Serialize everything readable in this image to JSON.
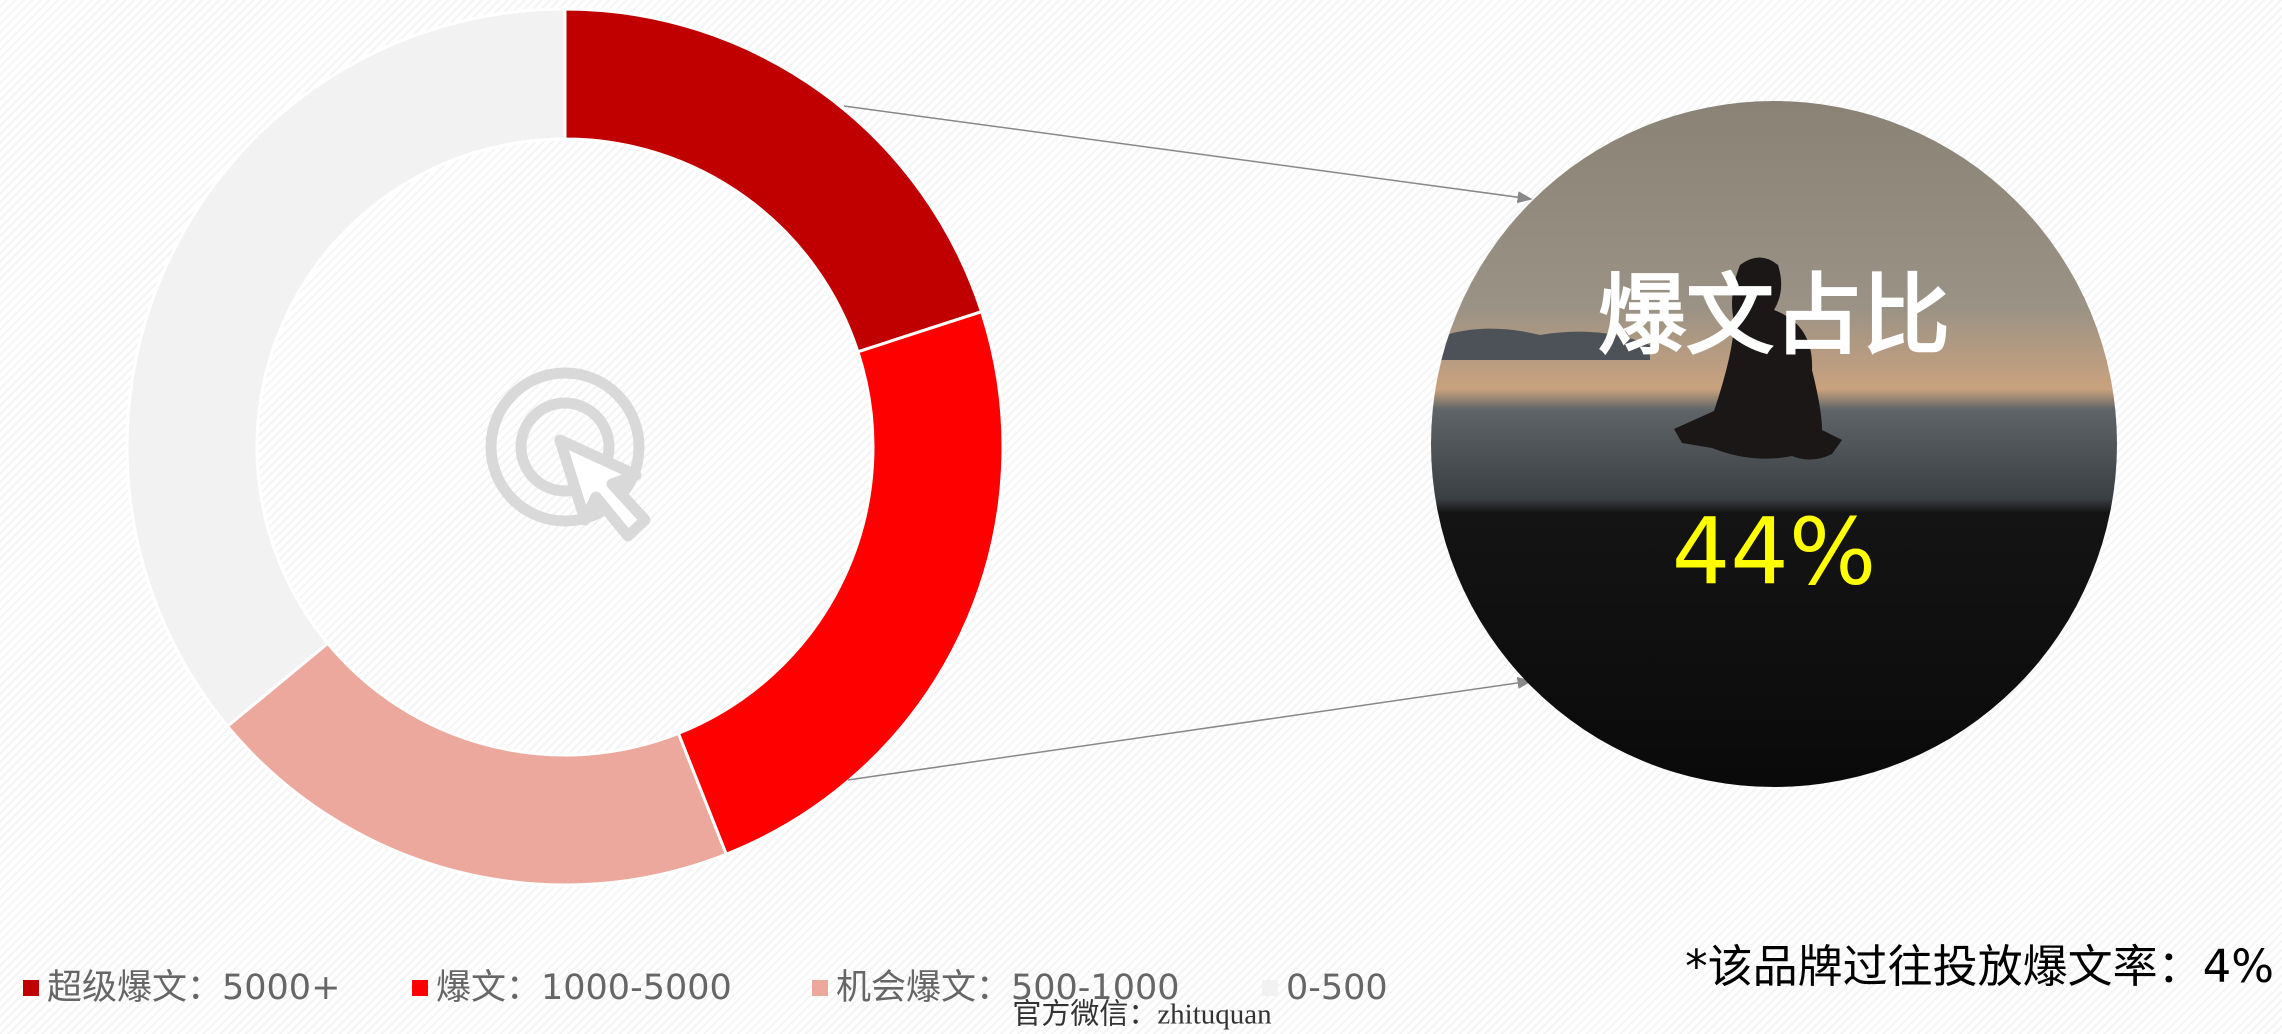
{
  "chart_data": {
    "type": "pie",
    "donut": true,
    "categories": [
      "超级爆文：5000+",
      "爆文：1000-5000",
      "机会爆文：500-1000",
      "0-500"
    ],
    "values": [
      20,
      24,
      20,
      36
    ],
    "colors": [
      "#c00000",
      "#ff0000",
      "#eca89d",
      "#f2f2f2"
    ],
    "legend": "bottom",
    "callout": {
      "title": "爆文占比",
      "value_text": "44%"
    },
    "footnote": "*该品牌过往投放爆文率：4%"
  },
  "watermark": "官方微信：zhituquan"
}
